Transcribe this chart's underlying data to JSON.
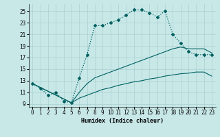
{
  "xlabel": "Humidex (Indice chaleur)",
  "xlim": [
    -0.5,
    23.5
  ],
  "ylim": [
    8.5,
    26.2
  ],
  "xticks": [
    0,
    1,
    2,
    3,
    4,
    5,
    6,
    7,
    8,
    9,
    10,
    11,
    12,
    13,
    14,
    15,
    16,
    17,
    18,
    19,
    20,
    21,
    22,
    23
  ],
  "yticks": [
    9,
    11,
    13,
    15,
    17,
    19,
    21,
    23,
    25
  ],
  "bg_color": "#c8e8e8",
  "grid_color": "#aacfcf",
  "line_color": "#006060",
  "curve1_x": [
    0,
    1,
    2,
    3,
    4,
    5,
    6,
    7,
    8,
    9,
    10,
    11,
    12,
    13,
    14,
    15,
    16,
    17,
    18,
    19,
    20,
    21,
    22,
    23
  ],
  "curve1_y": [
    12.5,
    11.7,
    10.5,
    11.0,
    9.5,
    9.2,
    13.5,
    17.5,
    22.5,
    22.5,
    23.0,
    23.5,
    24.3,
    25.2,
    25.2,
    24.7,
    24.0,
    25.0,
    21.0,
    19.5,
    18.0,
    17.5,
    17.5,
    17.5
  ],
  "curve2_x": [
    0,
    5,
    6,
    7,
    8,
    9,
    10,
    11,
    12,
    13,
    14,
    15,
    16,
    17,
    18,
    19,
    20,
    21,
    22,
    23
  ],
  "curve2_y": [
    12.5,
    9.2,
    11.0,
    12.5,
    13.5,
    14.0,
    14.5,
    15.0,
    15.5,
    16.0,
    16.5,
    17.0,
    17.5,
    18.0,
    18.5,
    18.8,
    18.5,
    18.5,
    18.5,
    17.8
  ],
  "curve3_x": [
    0,
    5,
    6,
    7,
    8,
    9,
    10,
    11,
    12,
    13,
    14,
    15,
    16,
    17,
    18,
    19,
    20,
    21,
    22,
    23
  ],
  "curve3_y": [
    12.5,
    9.2,
    10.0,
    10.5,
    11.0,
    11.5,
    11.8,
    12.2,
    12.5,
    12.8,
    13.0,
    13.3,
    13.5,
    13.8,
    14.0,
    14.2,
    14.3,
    14.5,
    14.5,
    13.8
  ]
}
